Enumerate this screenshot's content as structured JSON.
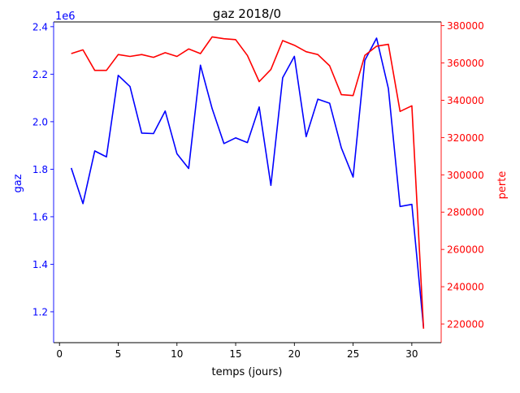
{
  "colors": {
    "left": "#0000ff",
    "right": "#ff0000",
    "axis": "#000000",
    "text": "#000000"
  },
  "chart_data": {
    "type": "line",
    "title": "gaz 2018/0",
    "xlabel": "temps (jours)",
    "x": [
      1,
      2,
      3,
      4,
      5,
      6,
      7,
      8,
      9,
      10,
      11,
      12,
      13,
      14,
      15,
      16,
      17,
      18,
      19,
      20,
      21,
      22,
      23,
      24,
      25,
      26,
      27,
      28,
      29,
      30,
      31
    ],
    "xlim": [
      -0.5,
      32.5
    ],
    "xticks": [
      0,
      5,
      10,
      15,
      20,
      25,
      30
    ],
    "left_axis": {
      "label": "gaz",
      "offset_text": "1e6",
      "ylim": [
        1.07,
        2.42
      ],
      "ticks": [
        1.2,
        1.4,
        1.6,
        1.8,
        2.0,
        2.2,
        2.4
      ],
      "tick_labels": [
        "1.2",
        "1.4",
        "1.6",
        "1.8",
        "2.0",
        "2.2",
        "2.4"
      ]
    },
    "right_axis": {
      "label": "perte",
      "ylim": [
        210000,
        382000
      ],
      "ticks": [
        220000,
        240000,
        260000,
        280000,
        300000,
        320000,
        340000,
        360000,
        380000
      ],
      "tick_labels": [
        "220000",
        "240000",
        "260000",
        "280000",
        "300000",
        "320000",
        "340000",
        "360000",
        "380000"
      ]
    },
    "series": [
      {
        "axis": "left",
        "color": "#0000ff",
        "values": [
          1.805,
          1.655,
          1.877,
          1.852,
          2.195,
          2.148,
          1.952,
          1.95,
          2.045,
          1.865,
          1.803,
          2.238,
          2.055,
          1.908,
          1.932,
          1.912,
          2.062,
          1.732,
          2.185,
          2.275,
          1.937,
          2.095,
          2.078,
          1.89,
          1.767,
          2.258,
          2.352,
          2.14,
          1.643,
          1.652,
          1.133
        ]
      },
      {
        "axis": "right",
        "color": "#ff0000",
        "values": [
          365000,
          367000,
          356000,
          356000,
          364500,
          363500,
          364500,
          363000,
          365500,
          363500,
          367500,
          365000,
          374000,
          373000,
          372500,
          364000,
          350000,
          356500,
          372000,
          369500,
          366000,
          364500,
          358500,
          343000,
          342500,
          364000,
          369000,
          370000,
          334000,
          337000,
          217500
        ]
      }
    ]
  }
}
